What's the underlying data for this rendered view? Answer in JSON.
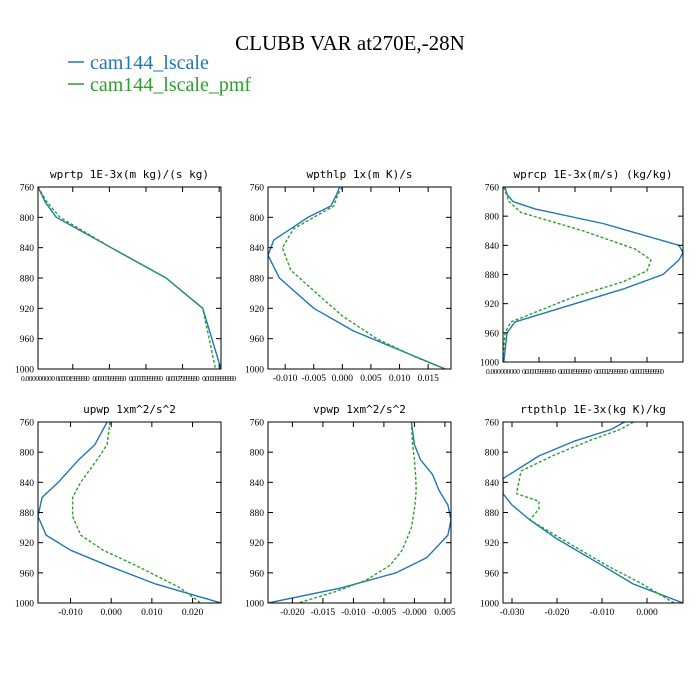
{
  "figure": {
    "title": "CLUBB VAR at270E,-28N",
    "legend": [
      {
        "label": "cam144_lscale",
        "color": "#1f77b4",
        "dash": false
      },
      {
        "label": "cam144_lscale_pmf",
        "color": "#2ca02c",
        "dash": true
      }
    ]
  },
  "chart_data": [
    {
      "type": "line",
      "title": "wprtp  1E-3x(m kg)/(s kg)",
      "ylim": [
        760,
        1000
      ],
      "yticks": [
        "760",
        "800",
        "840",
        "880",
        "920",
        "960",
        "1000"
      ],
      "xlim": [
        0,
        0.0001
      ],
      "xticks": [
        0,
        1.9e-05,
        3.9e-05,
        5.9e-05,
        7.9e-05,
        9.9e-05
      ],
      "xtick_labels": [
        "0.000000000",
        "0.000019999990",
        "0.000039999990",
        "0.000059999990",
        "0.000079999990",
        "0.000099999990"
      ],
      "series": [
        {
          "name": "cam144_lscale",
          "x": [
            0.0,
            4e-06,
            1e-05,
            4e-05,
            7e-05,
            9e-05,
            0.0001
          ],
          "y": [
            760,
            780,
            800,
            840,
            880,
            920,
            1000
          ]
        },
        {
          "name": "cam144_lscale_pmf",
          "x": [
            0.0,
            5e-06,
            1.2e-05,
            4e-05,
            7e-05,
            9e-05,
            9.7e-05
          ],
          "y": [
            760,
            780,
            800,
            840,
            880,
            920,
            1000
          ]
        }
      ]
    },
    {
      "type": "line",
      "title": "wpthlp  1x(m K)/s",
      "ylim": [
        760,
        1000
      ],
      "yticks": [
        "760",
        "800",
        "840",
        "880",
        "920",
        "960",
        "1000"
      ],
      "xlim": [
        -0.013,
        0.019
      ],
      "xticks": [
        -0.01,
        -0.005,
        0.0,
        0.005,
        0.01,
        0.015
      ],
      "xtick_labels": [
        "-0.010",
        "-0.005",
        "0.000",
        "0.005",
        "0.010",
        "0.015"
      ],
      "series": [
        {
          "name": "cam144_lscale",
          "x": [
            -0.0005,
            -0.001,
            -0.002,
            -0.006,
            -0.009,
            -0.012,
            -0.013,
            -0.011,
            -0.005,
            0.002,
            0.01,
            0.018
          ],
          "y": [
            760,
            770,
            785,
            800,
            815,
            830,
            850,
            880,
            920,
            950,
            975,
            1000
          ]
        },
        {
          "name": "cam144_lscale_pmf",
          "x": [
            0.0,
            -0.0008,
            -0.0015,
            -0.005,
            -0.0085,
            -0.0105,
            -0.009,
            -0.0045,
            0.0,
            0.006,
            0.013,
            0.018
          ],
          "y": [
            760,
            770,
            785,
            800,
            815,
            840,
            870,
            900,
            930,
            960,
            985,
            1000
          ]
        }
      ]
    },
    {
      "type": "line",
      "title": "wprcp  1E-3x(m/s) (kg/kg)",
      "ylim": [
        760,
        1000
      ],
      "yticks": [
        "760",
        "800",
        "840",
        "880",
        "920",
        "960",
        "1000"
      ],
      "xlim": [
        0,
        4.5e-05
      ],
      "xticks": [
        0.0,
        9e-06,
        1.8e-05,
        2.7e-05,
        3.6e-05
      ],
      "xtick_labels": [
        "0.000000000",
        "0.000009999990",
        "0.000019999990",
        "0.000029999990",
        "0.000039999990"
      ],
      "series": [
        {
          "name": "cam144_lscale",
          "x": [
            5e-07,
            1e-06,
            2.5e-06,
            8e-06,
            2.5e-05,
            4.4e-05,
            4.5e-05,
            4.4e-05,
            4e-05,
            3e-05,
            3e-06,
            1e-06,
            2e-07
          ],
          "y": [
            760,
            770,
            780,
            790,
            810,
            840,
            850,
            860,
            880,
            900,
            945,
            960,
            1000
          ]
        },
        {
          "name": "cam144_lscale_pmf",
          "x": [
            2e-07,
            8e-07,
            1.5e-06,
            4.5e-06,
            2e-05,
            3.3e-05,
            3.7e-05,
            3.6e-05,
            3e-05,
            1.8e-05,
            2e-06,
            5e-07,
            0.0
          ],
          "y": [
            760,
            770,
            780,
            795,
            820,
            845,
            860,
            875,
            890,
            910,
            945,
            960,
            1000
          ]
        }
      ]
    },
    {
      "type": "line",
      "title": "upwp  1xm^2/s^2",
      "ylim": [
        760,
        1000
      ],
      "yticks": [
        "760",
        "800",
        "840",
        "880",
        "920",
        "960",
        "1000"
      ],
      "xlim": [
        -0.018,
        0.027
      ],
      "xticks": [
        -0.01,
        0.0,
        0.01,
        0.02
      ],
      "xtick_labels": [
        "-0.010",
        "0.000",
        "0.010",
        "0.020"
      ],
      "series": [
        {
          "name": "cam144_lscale",
          "x": [
            -0.001,
            -0.004,
            -0.008,
            -0.013,
            -0.017,
            -0.018,
            -0.016,
            -0.01,
            -0.001,
            0.011,
            0.027
          ],
          "y": [
            760,
            790,
            810,
            840,
            860,
            885,
            910,
            930,
            950,
            975,
            1000
          ]
        },
        {
          "name": "cam144_lscale_pmf",
          "x": [
            -0.0003,
            -0.001,
            -0.0035,
            -0.0075,
            -0.0095,
            -0.0095,
            -0.0075,
            -0.002,
            0.006,
            0.017,
            0.022
          ],
          "y": [
            760,
            790,
            810,
            840,
            860,
            885,
            910,
            930,
            950,
            980,
            1000
          ]
        }
      ]
    },
    {
      "type": "line",
      "title": "vpwp  1xm^2/s^2",
      "ylim": [
        760,
        1000
      ],
      "yticks": [
        "760",
        "800",
        "840",
        "880",
        "920",
        "960",
        "1000"
      ],
      "xlim": [
        -0.024,
        0.006
      ],
      "xticks": [
        -0.02,
        -0.015,
        -0.01,
        -0.005,
        0.0,
        0.005
      ],
      "xtick_labels": [
        "-0.020",
        "-0.015",
        "-0.010",
        "-0.005",
        "-0.000",
        "0.005"
      ],
      "series": [
        {
          "name": "cam144_lscale",
          "x": [
            -0.0005,
            0.0,
            0.001,
            0.003,
            0.004,
            0.0055,
            0.006,
            0.0055,
            0.002,
            -0.003,
            -0.012,
            -0.024
          ],
          "y": [
            760,
            790,
            810,
            830,
            850,
            870,
            890,
            910,
            940,
            960,
            980,
            1000
          ]
        },
        {
          "name": "cam144_lscale_pmf",
          "x": [
            -0.0005,
            -0.0003,
            0.0,
            0.0002,
            0.0003,
            0.0001,
            -0.0005,
            -0.002,
            -0.004,
            -0.008,
            -0.013,
            -0.019
          ],
          "y": [
            760,
            790,
            810,
            830,
            850,
            870,
            900,
            930,
            950,
            970,
            985,
            1000
          ]
        }
      ]
    },
    {
      "type": "line",
      "title": "rtpthlp  1E-3x(kg K)/kg",
      "ylim": [
        760,
        1000
      ],
      "yticks": [
        "760",
        "800",
        "840",
        "880",
        "920",
        "960",
        "1000"
      ],
      "xlim": [
        -0.032,
        0.008
      ],
      "xticks": [
        -0.03,
        -0.02,
        -0.01,
        0.0
      ],
      "xtick_labels": [
        "-0.030",
        "-0.020",
        "-0.010",
        "0.000"
      ],
      "series": [
        {
          "name": "cam144_lscale",
          "x": [
            -0.005,
            -0.008,
            -0.016,
            -0.024,
            -0.032,
            -0.032,
            -0.03,
            -0.026,
            -0.02,
            -0.01,
            -0.003,
            0.008
          ],
          "y": [
            760,
            770,
            785,
            805,
            835,
            855,
            870,
            890,
            915,
            950,
            975,
            1000
          ]
        },
        {
          "name": "cam144_lscale_pmf",
          "x": [
            -0.003,
            -0.006,
            -0.013,
            -0.021,
            -0.028,
            -0.029,
            -0.024,
            -0.024,
            -0.026,
            -0.019,
            -0.009,
            -0.001,
            0.006
          ],
          "y": [
            760,
            770,
            785,
            805,
            825,
            855,
            865,
            875,
            890,
            915,
            950,
            975,
            1000
          ]
        }
      ]
    }
  ]
}
